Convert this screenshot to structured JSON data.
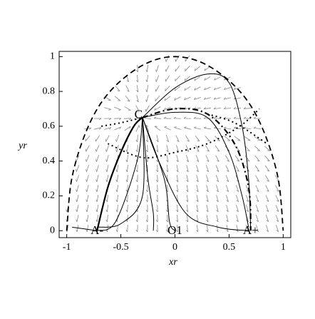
{
  "chart_data": {
    "type": "phase-portrait",
    "xlabel": "xr",
    "ylabel": "yr",
    "xlim": [
      -1.07,
      1.07
    ],
    "ylim": [
      -0.04,
      1.03
    ],
    "xticks": [
      -1,
      -0.5,
      0,
      0.5,
      1
    ],
    "yticks": [
      0,
      0.2,
      0.4,
      0.6,
      0.8,
      1
    ],
    "points": [
      {
        "label": "C",
        "x": -0.3,
        "y": 0.65
      },
      {
        "label": "A-",
        "x": -0.72,
        "y": 0
      },
      {
        "label": "O1",
        "x": 0,
        "y": 0
      },
      {
        "label": "A+",
        "x": 0.7,
        "y": 0
      }
    ],
    "series": [
      {
        "style": "dash",
        "color": "#000000",
        "x": [
          -1,
          -0.95,
          -0.8,
          -0.6,
          -0.3,
          0,
          0.3,
          0.6,
          0.8,
          0.95,
          1
        ],
        "y": [
          0,
          0.31,
          0.6,
          0.8,
          0.95,
          1,
          0.95,
          0.8,
          0.6,
          0.31,
          0
        ]
      },
      {
        "style": "dashdot",
        "color": "#000000",
        "x": [
          -0.3,
          0,
          0.3,
          0.55,
          0.68,
          0.7
        ],
        "y": [
          0.65,
          0.7,
          0.67,
          0.5,
          0.25,
          0
        ]
      },
      {
        "style": "dot",
        "color": "#000000",
        "x": [
          -0.68,
          -0.5,
          -0.3
        ],
        "y": [
          0.6,
          0.62,
          0.65
        ]
      },
      {
        "style": "dot",
        "color": "#000000",
        "x": [
          0.3,
          0.55,
          0.85
        ],
        "y": [
          0.67,
          0.62,
          0.5
        ]
      },
      {
        "style": "dot",
        "color": "#000000",
        "x": [
          -0.62,
          -0.3,
          0,
          0.3,
          0.6,
          0.78
        ],
        "y": [
          0.5,
          0.42,
          0.45,
          0.5,
          0.6,
          0.7
        ]
      },
      {
        "style": "bold",
        "color": "#000000",
        "x": [
          -0.72,
          -0.62,
          -0.5,
          -0.38,
          -0.3
        ],
        "y": [
          0,
          0.25,
          0.45,
          0.6,
          0.65
        ]
      },
      {
        "style": "solid",
        "color": "#000000",
        "x": [
          -0.3,
          0,
          0.3,
          0.5,
          0.62,
          0.68,
          0.7
        ],
        "y": [
          0.65,
          0.82,
          0.9,
          0.85,
          0.6,
          0.3,
          0
        ]
      },
      {
        "style": "solid",
        "color": "#000000",
        "x": [
          -0.3,
          0,
          0.3,
          0.5,
          0.62,
          0.68
        ],
        "y": [
          0.65,
          0.68,
          0.65,
          0.45,
          0.2,
          0.02
        ]
      },
      {
        "style": "solid",
        "color": "#000000",
        "x": [
          -0.3,
          -0.15,
          0.1,
          0.4,
          0.68
        ],
        "y": [
          0.65,
          0.4,
          0.1,
          0.02,
          0
        ]
      },
      {
        "style": "solid",
        "color": "#000000",
        "x": [
          -0.3,
          -0.1,
          -0.05,
          0
        ],
        "y": [
          0.65,
          0.3,
          0.05,
          0
        ]
      },
      {
        "style": "solid",
        "color": "#000000",
        "x": [
          -0.3,
          -0.25,
          -0.2,
          -0.2
        ],
        "y": [
          0.65,
          0.3,
          0.1,
          0
        ]
      },
      {
        "style": "solid",
        "color": "#000000",
        "x": [
          -0.3,
          -0.35,
          -0.55,
          -0.72
        ],
        "y": [
          0.65,
          0.4,
          0.05,
          0
        ]
      },
      {
        "style": "solid",
        "color": "#000000",
        "x": [
          -0.3,
          -0.3,
          -0.5,
          -0.72
        ],
        "y": [
          0.65,
          0.2,
          0.04,
          0.02
        ]
      },
      {
        "style": "solid",
        "color": "#000000",
        "x": [
          -0.95,
          -0.72
        ],
        "y": [
          0.02,
          0
        ]
      }
    ]
  }
}
